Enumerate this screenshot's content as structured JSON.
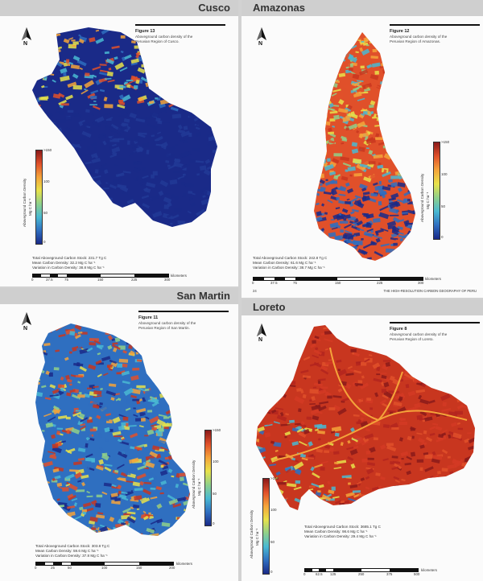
{
  "legend": {
    "label": "Aboveground Carbon Density",
    "unit": "Mg C ha⁻¹",
    "ticks": [
      "0",
      "50",
      "100",
      ">150"
    ],
    "gradient": [
      "#1a2a88",
      "#2f6fc0",
      "#49b9d2",
      "#8fd08a",
      "#e8e24a",
      "#f4a33a",
      "#e0502a",
      "#8b1a1a"
    ]
  },
  "north": "N",
  "scale_unit": "kilometers",
  "footer_text": "THE HIGH-RESOLUTION CARBON GEOGRAPHY OF PERU",
  "page_number": "24",
  "panels": [
    {
      "key": "cusco",
      "region": "Cusco",
      "figure": "Figure 13",
      "desc_lines": [
        "Aboveground carbon density of the",
        "Peruvian Region of Cusco."
      ],
      "stats": [
        "Total Aboveground Carbon Stock: 231.7 Tg C",
        "Mean Carbon Density: 32.2 Mg C ha⁻¹",
        "Variation in Carbon Density: 38.8 Mg C ha⁻¹"
      ],
      "scale_ticks": [
        "0",
        "37.5",
        "75",
        "150",
        "225",
        "300"
      ],
      "colors": [
        "#1a2a88",
        "#223a96",
        "#2f6fc0",
        "#49b9d2",
        "#e8e24a",
        "#f4a33a",
        "#e0502a"
      ]
    },
    {
      "key": "amazonas",
      "region": "Amazonas",
      "figure": "Figure 12",
      "desc_lines": [
        "Aboveground carbon density of the",
        "Peruvian Region of Amazonas."
      ],
      "stats": [
        "Total Aboveground Carbon Stock: 242.8 Tg C",
        "Mean Carbon Density: 61.6 Mg C ha⁻¹",
        "Variation in Carbon Density: 38.7 Mg C ha⁻¹"
      ],
      "scale_ticks": [
        "0",
        "37.5",
        "75",
        "150",
        "225",
        "300"
      ],
      "colors": [
        "#1a2a88",
        "#2f6fc0",
        "#49b9d2",
        "#8fd08a",
        "#e8e24a",
        "#f4a33a",
        "#e0502a",
        "#c8361f"
      ]
    },
    {
      "key": "sanmartin",
      "region": "San Martin",
      "figure": "Figure 11",
      "desc_lines": [
        "Aboveground carbon density of the",
        "Peruvian Region of San Martin."
      ],
      "stats": [
        "Total Aboveground Carbon Stock: 303.8 Tg C",
        "Mean Carbon Density: 59.6 Mg C ha⁻¹",
        "Variation in Carbon Density: 37.8 Mg C ha⁻¹"
      ],
      "scale_ticks": [
        "0",
        "25",
        "50",
        "100",
        "150",
        "200"
      ],
      "colors": [
        "#1a2a88",
        "#2f6fc0",
        "#49b9d2",
        "#8fd08a",
        "#e8e24a",
        "#f4a33a",
        "#e0502a",
        "#c8361f"
      ]
    },
    {
      "key": "loreto",
      "region": "Loreto",
      "figure": "Figure 8",
      "desc_lines": [
        "Aboveground carbon density of the",
        "Peruvian Region of Loreto."
      ],
      "stats": [
        "Total Aboveground Carbon Stock: 3685.1 Tg C",
        "Mean Carbon Density: 98.6 Mg C ha⁻¹",
        "Variation in Carbon Density: 29.4 Mg C ha⁻¹"
      ],
      "scale_ticks": [
        "0",
        "62.5",
        "125",
        "250",
        "375",
        "500"
      ],
      "colors": [
        "#8b1a1a",
        "#b3241e",
        "#d43a24",
        "#e0502a",
        "#f4a33a",
        "#e8e24a",
        "#49b9d2",
        "#2f6fc0"
      ]
    }
  ]
}
